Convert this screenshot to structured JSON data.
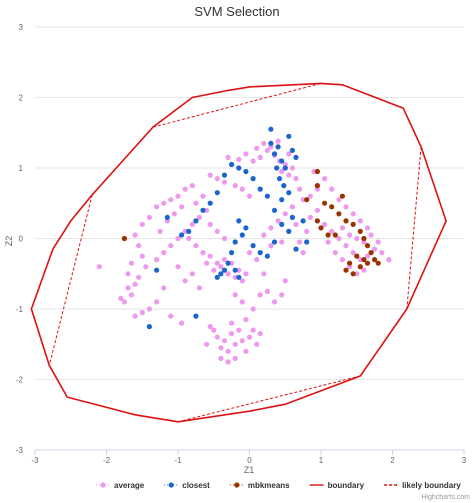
{
  "chart_data": {
    "type": "scatter",
    "title": "SVM Selection",
    "xlabel": "Z1",
    "ylabel": "Z2",
    "xlim": [
      -3,
      3
    ],
    "ylim": [
      -3,
      3
    ],
    "x_ticks": [
      "-3",
      "-2",
      "-1",
      "0",
      "1",
      "2",
      "3"
    ],
    "y_ticks": [
      "-3",
      "-2",
      "-1",
      "0",
      "1",
      "2",
      "3"
    ],
    "grid": true,
    "legend_position": "bottom-center",
    "credit": "Highcharts.com",
    "series": [
      {
        "name": "average",
        "kind": "points",
        "color": "#ee99ee",
        "points": [
          [
            -0.25,
            1.05
          ],
          [
            -0.15,
            1.12
          ],
          [
            -0.05,
            1.2
          ],
          [
            0.05,
            1.1
          ],
          [
            0.15,
            1.15
          ],
          [
            0.25,
            1.25
          ],
          [
            0.35,
            1.18
          ],
          [
            0.42,
            1.1
          ],
          [
            0.5,
            1.05
          ],
          [
            0.55,
            1.2
          ],
          [
            -0.3,
            1.15
          ],
          [
            0.1,
            1.28
          ],
          [
            0.2,
            1.35
          ],
          [
            0.3,
            1.3
          ],
          [
            0.4,
            1.38
          ],
          [
            0.45,
            0.95
          ],
          [
            0.55,
            0.9
          ],
          [
            0.6,
            1.0
          ],
          [
            0.65,
            0.85
          ],
          [
            0.7,
            0.7
          ],
          [
            0.75,
            0.55
          ],
          [
            0.6,
            0.45
          ],
          [
            0.5,
            0.35
          ],
          [
            0.4,
            0.25
          ],
          [
            0.3,
            0.15
          ],
          [
            0.2,
            0.05
          ],
          [
            0.0,
            0.6
          ],
          [
            -0.1,
            0.7
          ],
          [
            -0.2,
            0.75
          ],
          [
            -0.35,
            0.8
          ],
          [
            -0.45,
            0.85
          ],
          [
            -0.55,
            0.9
          ],
          [
            -0.8,
            0.75
          ],
          [
            -0.9,
            0.7
          ],
          [
            -1.0,
            0.6
          ],
          [
            -1.1,
            0.55
          ],
          [
            -1.2,
            0.5
          ],
          [
            -1.3,
            0.45
          ],
          [
            -1.4,
            0.3
          ],
          [
            -1.5,
            0.2
          ],
          [
            -1.6,
            0.05
          ],
          [
            -1.55,
            -0.1
          ],
          [
            -1.5,
            -0.25
          ],
          [
            -1.45,
            -0.4
          ],
          [
            -1.55,
            -0.55
          ],
          [
            -1.6,
            -0.65
          ],
          [
            -1.65,
            -0.8
          ],
          [
            -1.7,
            -0.7
          ],
          [
            -1.75,
            -0.9
          ],
          [
            -1.8,
            -0.85
          ],
          [
            -1.3,
            -0.3
          ],
          [
            -1.2,
            -0.2
          ],
          [
            -1.1,
            -0.1
          ],
          [
            -1.0,
            0.0
          ],
          [
            -0.9,
            0.1
          ],
          [
            -0.8,
            0.2
          ],
          [
            -0.7,
            0.3
          ],
          [
            -0.6,
            0.4
          ],
          [
            -1.25,
            0.1
          ],
          [
            -1.15,
            0.25
          ],
          [
            -1.05,
            0.35
          ],
          [
            -0.95,
            0.45
          ],
          [
            -0.85,
            0.0
          ],
          [
            -0.75,
            -0.1
          ],
          [
            -0.65,
            -0.2
          ],
          [
            -0.55,
            -0.25
          ],
          [
            -0.45,
            -0.35
          ],
          [
            -0.35,
            -0.3
          ],
          [
            -0.25,
            -0.35
          ],
          [
            -0.15,
            -0.45
          ],
          [
            -0.05,
            -0.5
          ],
          [
            -0.4,
            -0.4
          ],
          [
            -0.5,
            -0.45
          ],
          [
            -0.6,
            -0.35
          ],
          [
            -0.3,
            -0.5
          ],
          [
            -0.2,
            -0.55
          ],
          [
            -0.1,
            -0.6
          ],
          [
            -1.0,
            -0.4
          ],
          [
            -0.9,
            -0.6
          ],
          [
            -0.8,
            -0.5
          ],
          [
            -0.7,
            -0.7
          ],
          [
            -1.2,
            -0.7
          ],
          [
            -1.3,
            -0.9
          ],
          [
            -1.4,
            -1.0
          ],
          [
            -1.1,
            -1.1
          ],
          [
            -0.95,
            -1.2
          ],
          [
            -0.6,
            -1.5
          ],
          [
            -0.5,
            -1.3
          ],
          [
            -0.45,
            -1.4
          ],
          [
            -0.4,
            -1.55
          ],
          [
            -0.35,
            -1.45
          ],
          [
            -0.3,
            -1.6
          ],
          [
            -0.25,
            -1.35
          ],
          [
            -0.2,
            -1.5
          ],
          [
            -0.15,
            -1.3
          ],
          [
            -0.1,
            -1.45
          ],
          [
            -0.05,
            -1.6
          ],
          [
            0.0,
            -1.4
          ],
          [
            0.05,
            -1.3
          ],
          [
            0.1,
            -1.5
          ],
          [
            0.15,
            -1.35
          ],
          [
            -0.4,
            -1.7
          ],
          [
            -0.3,
            -1.75
          ],
          [
            -0.2,
            -1.7
          ],
          [
            0.05,
            -1.0
          ],
          [
            0.15,
            -0.8
          ],
          [
            0.25,
            -0.75
          ],
          [
            0.35,
            -0.9
          ],
          [
            0.2,
            -0.5
          ],
          [
            0.1,
            -0.3
          ],
          [
            0.0,
            -0.2
          ],
          [
            0.3,
            -0.1
          ],
          [
            0.45,
            -0.05
          ],
          [
            0.55,
            0.1
          ],
          [
            0.65,
            0.2
          ],
          [
            0.7,
            -0.05
          ],
          [
            0.85,
            0.3
          ],
          [
            0.95,
            0.4
          ],
          [
            1.05,
            0.2
          ],
          [
            1.15,
            0.1
          ],
          [
            1.25,
            0.0
          ],
          [
            1.35,
            -0.1
          ],
          [
            1.45,
            -0.2
          ],
          [
            1.55,
            -0.3
          ],
          [
            1.65,
            -0.25
          ],
          [
            1.75,
            -0.15
          ],
          [
            1.85,
            -0.2
          ],
          [
            1.95,
            -0.3
          ],
          [
            1.1,
            -0.05
          ],
          [
            1.2,
            -0.2
          ],
          [
            1.3,
            -0.3
          ],
          [
            1.4,
            -0.4
          ],
          [
            1.5,
            -0.5
          ],
          [
            1.6,
            -0.45
          ],
          [
            1.3,
            0.15
          ],
          [
            1.4,
            0.05
          ],
          [
            1.5,
            0.0
          ],
          [
            1.6,
            -0.05
          ],
          [
            1.7,
            0.05
          ],
          [
            1.8,
            -0.05
          ],
          [
            1.45,
            0.35
          ],
          [
            1.55,
            0.25
          ],
          [
            1.65,
            0.15
          ],
          [
            1.35,
            0.45
          ],
          [
            1.25,
            0.55
          ],
          [
            1.15,
            0.7
          ],
          [
            1.05,
            0.85
          ],
          [
            0.9,
            0.95
          ],
          [
            0.85,
            0.6
          ],
          [
            0.95,
            0.7
          ],
          [
            -1.6,
            -1.1
          ],
          [
            -1.5,
            -1.05
          ],
          [
            -1.7,
            -0.5
          ],
          [
            -1.65,
            -0.35
          ],
          [
            -2.1,
            -0.4
          ],
          [
            -0.65,
            0.6
          ],
          [
            -0.75,
            0.5
          ],
          [
            -0.55,
            0.2
          ],
          [
            -0.45,
            0.1
          ],
          [
            -0.35,
            0.0
          ],
          [
            0.75,
            -0.2
          ],
          [
            0.8,
            0.1
          ],
          [
            0.5,
            -0.6
          ],
          [
            0.45,
            -0.8
          ],
          [
            -0.2,
            -0.8
          ],
          [
            -0.1,
            -0.9
          ],
          [
            -0.05,
            -1.15
          ],
          [
            -0.25,
            -1.2
          ],
          [
            -0.55,
            -1.25
          ]
        ]
      },
      {
        "name": "closest",
        "kind": "points",
        "color": "#1a66cc",
        "points": [
          [
            0.3,
            1.35
          ],
          [
            0.4,
            1.3
          ],
          [
            0.35,
            1.2
          ],
          [
            0.45,
            1.1
          ],
          [
            0.5,
            1.0
          ],
          [
            0.38,
            1.0
          ],
          [
            0.42,
            0.85
          ],
          [
            0.48,
            0.75
          ],
          [
            0.55,
            1.45
          ],
          [
            0.3,
            1.55
          ],
          [
            0.6,
            1.25
          ],
          [
            0.65,
            1.15
          ],
          [
            0.55,
            0.65
          ],
          [
            0.45,
            0.55
          ],
          [
            0.35,
            0.4
          ],
          [
            0.25,
            0.6
          ],
          [
            0.15,
            0.7
          ],
          [
            0.05,
            0.85
          ],
          [
            -0.05,
            0.95
          ],
          [
            -0.15,
            1.0
          ],
          [
            -0.25,
            1.05
          ],
          [
            -0.35,
            0.9
          ],
          [
            -0.45,
            0.65
          ],
          [
            -0.55,
            0.5
          ],
          [
            -0.65,
            0.4
          ],
          [
            -0.75,
            0.25
          ],
          [
            -0.85,
            0.1
          ],
          [
            -0.95,
            0.05
          ],
          [
            -1.15,
            0.3
          ],
          [
            -0.15,
            0.25
          ],
          [
            -0.05,
            0.15
          ],
          [
            -0.1,
            0.05
          ],
          [
            -0.2,
            -0.05
          ],
          [
            -0.25,
            -0.2
          ],
          [
            -0.3,
            -0.35
          ],
          [
            -0.35,
            -0.45
          ],
          [
            -0.4,
            -0.5
          ],
          [
            -0.2,
            -0.45
          ],
          [
            -0.15,
            -0.55
          ],
          [
            -0.45,
            -0.55
          ],
          [
            0.05,
            -0.1
          ],
          [
            0.15,
            -0.2
          ],
          [
            0.25,
            -0.25
          ],
          [
            0.35,
            -0.05
          ],
          [
            0.55,
            0.1
          ],
          [
            0.75,
            0.25
          ],
          [
            0.8,
            -0.05
          ],
          [
            0.65,
            -0.15
          ],
          [
            -1.3,
            -0.45
          ],
          [
            -1.4,
            -1.25
          ],
          [
            -0.75,
            -1.1
          ],
          [
            0.45,
            0.2
          ],
          [
            0.6,
            0.3
          ]
        ]
      },
      {
        "name": "mbkmeans",
        "kind": "points",
        "color": "#993300",
        "points": [
          [
            0.95,
            0.95
          ],
          [
            0.95,
            0.75
          ],
          [
            1.3,
            0.6
          ],
          [
            1.05,
            0.5
          ],
          [
            1.15,
            0.45
          ],
          [
            1.25,
            0.35
          ],
          [
            1.35,
            0.25
          ],
          [
            0.95,
            0.25
          ],
          [
            1.0,
            0.15
          ],
          [
            1.1,
            0.05
          ],
          [
            1.45,
            0.2
          ],
          [
            1.55,
            0.1
          ],
          [
            1.6,
            0.0
          ],
          [
            1.65,
            -0.1
          ],
          [
            1.7,
            -0.2
          ],
          [
            1.75,
            -0.3
          ],
          [
            1.8,
            -0.35
          ],
          [
            1.6,
            -0.3
          ],
          [
            1.5,
            -0.25
          ],
          [
            1.4,
            -0.35
          ],
          [
            1.35,
            -0.45
          ],
          [
            1.45,
            -0.5
          ],
          [
            1.55,
            -0.4
          ],
          [
            1.65,
            -0.35
          ],
          [
            1.2,
            0.05
          ],
          [
            0.8,
            0.55
          ],
          [
            -1.75,
            0.0
          ]
        ]
      },
      {
        "name": "boundary",
        "kind": "line",
        "dash": "solid",
        "color": "#dd1111",
        "points": [
          [
            -2.2,
            0.62
          ],
          [
            -1.35,
            1.58
          ],
          [
            -0.8,
            2.0
          ],
          [
            -0.3,
            2.1
          ],
          [
            0.0,
            2.15
          ],
          [
            1.0,
            2.2
          ],
          [
            1.3,
            2.18
          ],
          [
            2.15,
            1.85
          ],
          [
            2.4,
            1.3
          ],
          [
            2.75,
            0.25
          ],
          [
            2.2,
            -1.0
          ],
          [
            1.55,
            -1.95
          ],
          [
            0.5,
            -2.35
          ],
          [
            0.0,
            -2.45
          ],
          [
            -1.0,
            -2.6
          ],
          [
            -1.6,
            -2.5
          ],
          [
            -2.55,
            -2.25
          ],
          [
            -2.8,
            -1.8
          ],
          [
            -3.05,
            -1.0
          ],
          [
            -2.75,
            -0.15
          ],
          [
            -2.5,
            0.25
          ],
          [
            -2.2,
            0.62
          ]
        ]
      },
      {
        "name": "likely boundary",
        "kind": "line",
        "dash": "dashed",
        "color": "#dd1111",
        "segments": [
          [
            [
              -1.35,
              1.58
            ],
            [
              1.0,
              2.2
            ]
          ],
          [
            [
              2.4,
              1.3
            ],
            [
              2.2,
              -1.0
            ]
          ],
          [
            [
              1.55,
              -1.95
            ],
            [
              -1.0,
              -2.6
            ]
          ],
          [
            [
              -2.2,
              0.62
            ],
            [
              -2.8,
              -1.8
            ]
          ]
        ]
      }
    ]
  }
}
